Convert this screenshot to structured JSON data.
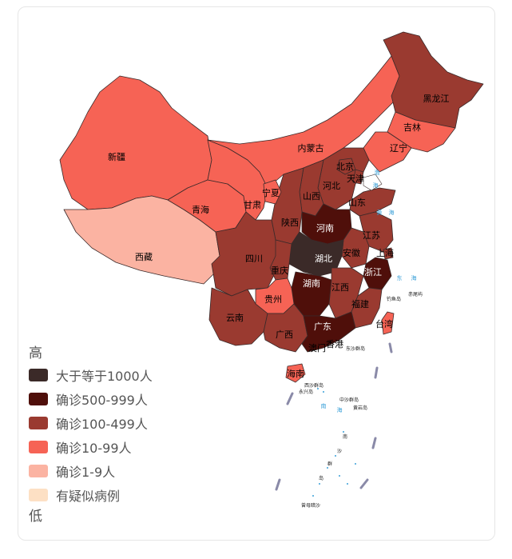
{
  "colors": {
    "gte1000": "#3b2a28",
    "c500": "#4f0f0a",
    "c100": "#9a3a30",
    "c10": "#f66355",
    "c1": "#fbb3a2",
    "suspect": "#fde0c4",
    "sea_text": "#3aa0d8"
  },
  "legend": {
    "high": "高",
    "low": "低",
    "items": [
      {
        "label": "大于等于1000人",
        "color": "#3b2a28"
      },
      {
        "label": "确诊500-999人",
        "color": "#4f0f0a"
      },
      {
        "label": "确诊100-499人",
        "color": "#9a3a30"
      },
      {
        "label": "确诊10-99人",
        "color": "#f66355"
      },
      {
        "label": "确诊1-9人",
        "color": "#fbb3a2"
      },
      {
        "label": "有疑似病例",
        "color": "#fde0c4"
      }
    ]
  },
  "provinces": {
    "heilongjiang": "黑龙江",
    "jilin": "吉林",
    "liaoning": "辽宁",
    "neimenggu": "内蒙古",
    "xinjiang": "新疆",
    "xizang": "西藏",
    "qinghai": "青海",
    "gansu": "甘肃",
    "ningxia": "宁夏",
    "shaanxi": "陕西",
    "shanxi": "山西",
    "hebei": "河北",
    "beijing": "北京",
    "tianjin": "天津",
    "shandong": "山东",
    "henan": "河南",
    "jiangsu": "江苏",
    "anhui": "安徽",
    "shanghai": "上海",
    "hubei": "湖北",
    "zhejiang": "浙江",
    "sichuan": "四川",
    "chongqing": "重庆",
    "hunan": "湖南",
    "jiangxi": "江西",
    "guizhou": "贵州",
    "fujian": "福建",
    "yunnan": "云南",
    "guangxi": "广西",
    "guangdong": "广东",
    "taiwan": "台湾",
    "aomen": "澳门",
    "xianggang": "香港",
    "hainan": "海南"
  },
  "sea_labels": [
    "渤",
    "海",
    "黄",
    "海",
    "东",
    "海",
    "南",
    "海"
  ],
  "islands": [
    "钓鱼岛",
    "赤尾屿",
    "东沙群岛",
    "西沙群岛",
    "永兴岛",
    "中沙群岛",
    "黄岩岛",
    "南",
    "沙",
    "群",
    "岛",
    "曾母暗沙"
  ]
}
